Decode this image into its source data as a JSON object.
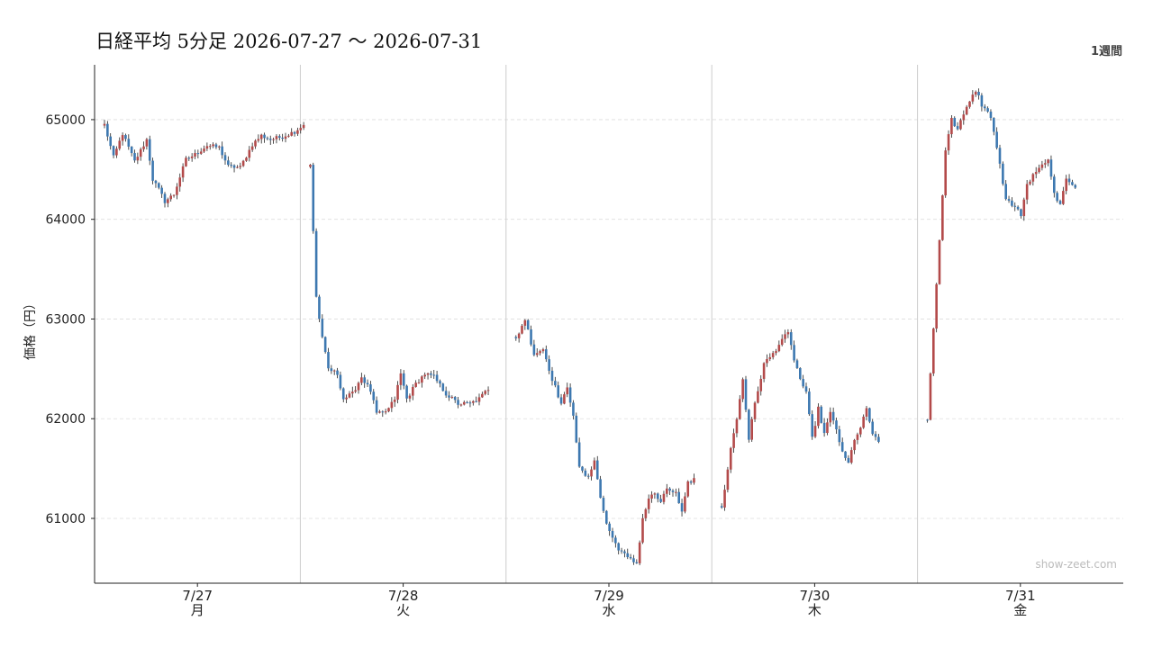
{
  "chart_data": {
    "type": "candlestick",
    "title": "日経平均 5分足  2026-07-27 〜 2026-07-31",
    "period_label": "1週間",
    "ylabel": "価格（円）",
    "ylim": [
      60350,
      65550
    ],
    "y_ticks": [
      "61000",
      "62000",
      "63000",
      "64000",
      "65000"
    ],
    "grid": true,
    "watermark": "show-zeet.com",
    "colors": {
      "up": "#b34a4a",
      "down": "#3d78b0",
      "wick": "#222222",
      "grid": "#dddddd",
      "separator": "#cccccc"
    },
    "days": [
      {
        "date": "7/27",
        "weekday": "月",
        "path": [
          [
            0,
            64950
          ],
          [
            3,
            64620
          ],
          [
            6,
            64860
          ],
          [
            10,
            64580
          ],
          [
            14,
            64800
          ],
          [
            16,
            64400
          ],
          [
            18,
            64300
          ],
          [
            20,
            64180
          ],
          [
            23,
            64250
          ],
          [
            27,
            64600
          ],
          [
            30,
            64650
          ],
          [
            34,
            64740
          ],
          [
            38,
            64720
          ],
          [
            41,
            64530
          ],
          [
            45,
            64520
          ],
          [
            49,
            64750
          ],
          [
            52,
            64840
          ],
          [
            55,
            64800
          ],
          [
            59,
            64830
          ],
          [
            63,
            64880
          ],
          [
            66,
            64950
          ]
        ]
      },
      {
        "date": "7/28",
        "weekday": "火",
        "path": [
          [
            0,
            64550
          ],
          [
            2,
            63220
          ],
          [
            4,
            62800
          ],
          [
            6,
            62500
          ],
          [
            9,
            62450
          ],
          [
            11,
            62200
          ],
          [
            14,
            62250
          ],
          [
            17,
            62420
          ],
          [
            20,
            62280
          ],
          [
            22,
            62050
          ],
          [
            24,
            62050
          ],
          [
            26,
            62100
          ],
          [
            28,
            62200
          ],
          [
            30,
            62450
          ],
          [
            32,
            62200
          ],
          [
            35,
            62350
          ],
          [
            38,
            62450
          ],
          [
            41,
            62420
          ],
          [
            45,
            62250
          ],
          [
            49,
            62150
          ],
          [
            53,
            62150
          ],
          [
            56,
            62200
          ],
          [
            59,
            62300
          ]
        ]
      },
      {
        "date": "7/29",
        "weekday": "水",
        "path": [
          [
            0,
            62800
          ],
          [
            3,
            63000
          ],
          [
            6,
            62650
          ],
          [
            9,
            62700
          ],
          [
            12,
            62400
          ],
          [
            15,
            62150
          ],
          [
            17,
            62300
          ],
          [
            19,
            62050
          ],
          [
            21,
            61500
          ],
          [
            24,
            61400
          ],
          [
            26,
            61600
          ],
          [
            28,
            61200
          ],
          [
            30,
            60950
          ],
          [
            32,
            60800
          ],
          [
            34,
            60700
          ],
          [
            37,
            60600
          ],
          [
            40,
            60550
          ],
          [
            42,
            61000
          ],
          [
            44,
            61200
          ],
          [
            46,
            61250
          ],
          [
            48,
            61150
          ],
          [
            50,
            61300
          ],
          [
            53,
            61250
          ],
          [
            55,
            61050
          ],
          [
            57,
            61350
          ],
          [
            59,
            61400
          ]
        ]
      },
      {
        "date": "7/30",
        "weekday": "木",
        "path": [
          [
            0,
            61100
          ],
          [
            3,
            61700
          ],
          [
            5,
            62000
          ],
          [
            7,
            62400
          ],
          [
            9,
            61800
          ],
          [
            11,
            62150
          ],
          [
            14,
            62550
          ],
          [
            17,
            62650
          ],
          [
            20,
            62800
          ],
          [
            22,
            62850
          ],
          [
            24,
            62600
          ],
          [
            26,
            62400
          ],
          [
            28,
            62250
          ],
          [
            30,
            61800
          ],
          [
            32,
            62100
          ],
          [
            34,
            61850
          ],
          [
            36,
            62050
          ],
          [
            38,
            61900
          ],
          [
            40,
            61650
          ],
          [
            42,
            61550
          ],
          [
            44,
            61800
          ],
          [
            46,
            61900
          ],
          [
            48,
            62100
          ],
          [
            50,
            61850
          ],
          [
            52,
            61750
          ]
        ]
      },
      {
        "date": "7/31",
        "weekday": "金",
        "path": [
          [
            0,
            62000
          ],
          [
            2,
            62900
          ],
          [
            4,
            63800
          ],
          [
            6,
            64700
          ],
          [
            8,
            65000
          ],
          [
            10,
            64900
          ],
          [
            12,
            65050
          ],
          [
            14,
            65200
          ],
          [
            16,
            65300
          ],
          [
            18,
            65150
          ],
          [
            20,
            65100
          ],
          [
            22,
            64900
          ],
          [
            24,
            64550
          ],
          [
            26,
            64200
          ],
          [
            28,
            64150
          ],
          [
            31,
            64050
          ],
          [
            33,
            64350
          ],
          [
            35,
            64450
          ],
          [
            37,
            64500
          ],
          [
            40,
            64620
          ],
          [
            42,
            64250
          ],
          [
            44,
            64150
          ],
          [
            46,
            64400
          ],
          [
            49,
            64300
          ]
        ]
      }
    ]
  }
}
